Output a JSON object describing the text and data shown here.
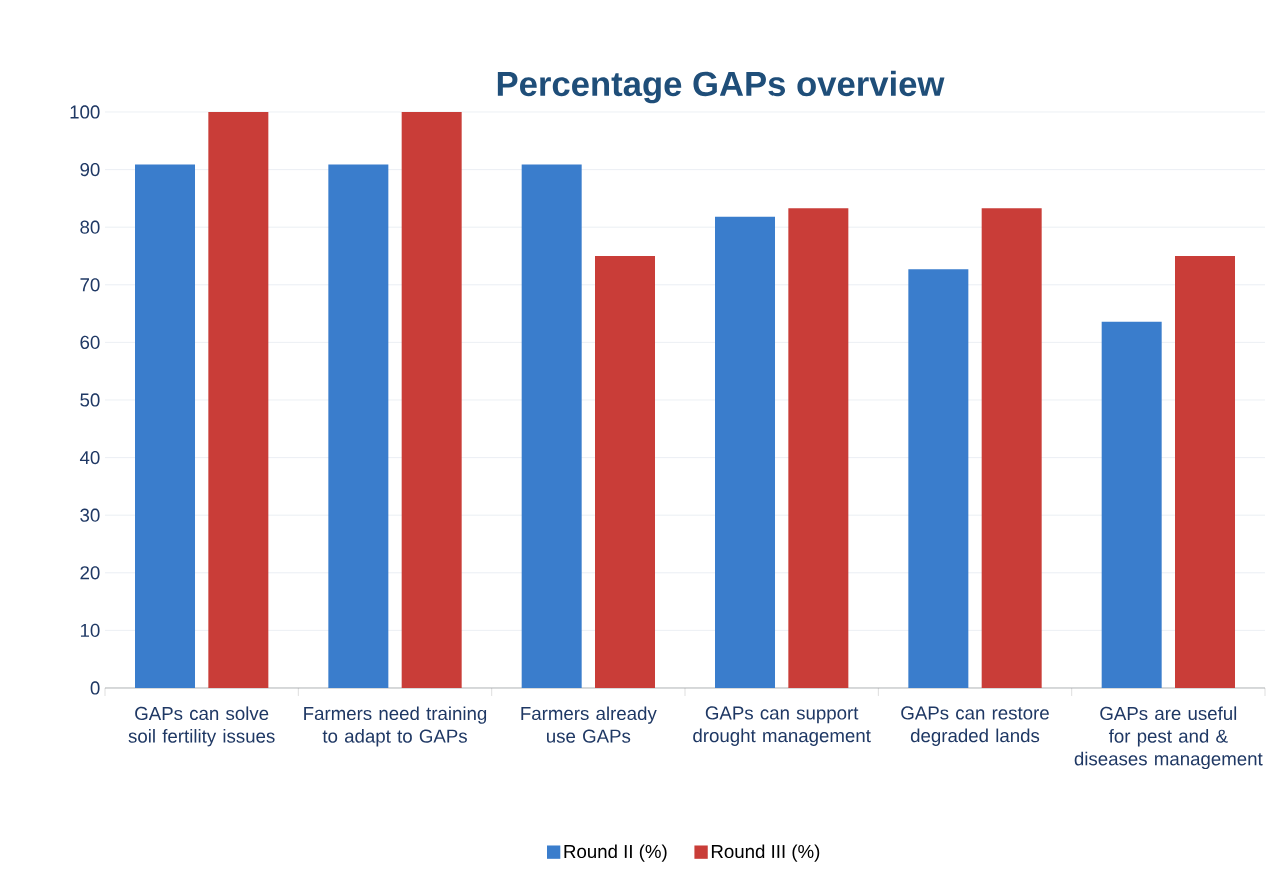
{
  "chart_data": {
    "type": "bar",
    "title": "Percentage GAPs overview",
    "categories": [
      "GAPs can solve soil fertility issues",
      "Farmers need training to adapt to GAPs",
      "Farmers already use GAPs",
      "GAPs can support drought management",
      "GAPs can restore degraded lands",
      "GAPs are useful for pest and & diseases management"
    ],
    "series": [
      {
        "name": "Round II (%)",
        "color": "#3a7dcc",
        "values": [
          90.9,
          90.9,
          90.9,
          81.8,
          72.7,
          63.6
        ]
      },
      {
        "name": "Round III (%)",
        "color": "#c93d38",
        "values": [
          100,
          100,
          75,
          83.3,
          83.3,
          75
        ]
      }
    ],
    "ylim": [
      0,
      100
    ],
    "yticks": [
      0,
      10,
      20,
      30,
      40,
      50,
      60,
      70,
      80,
      90,
      100
    ],
    "grid": "y",
    "legend": "bottom"
  }
}
